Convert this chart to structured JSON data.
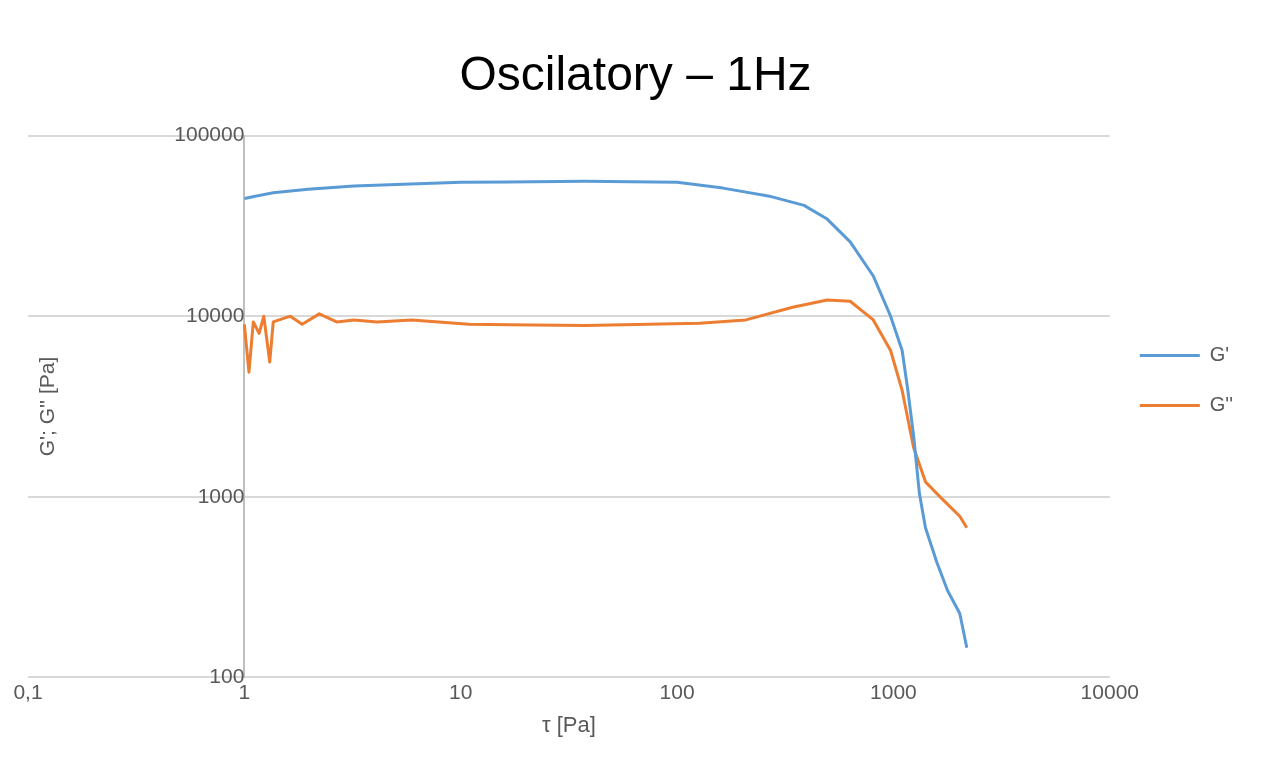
{
  "chart_data": {
    "type": "line",
    "title": "Oscilatory – 1Hz",
    "xlabel": "τ [Pa]",
    "ylabel": "G'; G'' [Pa]",
    "log": "xy",
    "grid": "y",
    "legend": "right",
    "marker": "none",
    "line_style": "solid",
    "xlim": [
      0.1,
      10000
    ],
    "xticks": [
      {
        "value": 0.1,
        "label": "0,1"
      },
      1,
      10,
      100,
      1000,
      10000
    ],
    "ylim": [
      100,
      100000
    ],
    "yticks": [
      100,
      1000,
      10000,
      100000
    ],
    "series": [
      {
        "name": "G'",
        "color": "#5b9bd5",
        "x": [
          1,
          1.36,
          1.97,
          3.21,
          10,
          37.5,
          100,
          163,
          267,
          386,
          494,
          631,
          807,
          970,
          1097,
          1166,
          1240,
          1318,
          1406,
          1585,
          1778,
          2026,
          2183
        ],
        "values": [
          44900,
          48300,
          50500,
          52600,
          55100,
          55800,
          55100,
          51200,
          46200,
          41100,
          34500,
          25800,
          16700,
          10000,
          6460,
          3880,
          2160,
          1045,
          674,
          436,
          303,
          226,
          146
        ]
      },
      {
        "name": "G''",
        "color": "#ed7d31",
        "x": [
          1,
          1.05,
          1.1,
          1.17,
          1.23,
          1.31,
          1.36,
          1.63,
          1.85,
          2.22,
          2.67,
          3.21,
          4.1,
          5.94,
          10.9,
          37.5,
          127,
          208,
          342,
          494,
          631,
          807,
          970,
          1097,
          1240,
          1406,
          1683,
          2026,
          2183
        ],
        "values": [
          9020,
          4900,
          9300,
          8030,
          10000,
          5570,
          9300,
          10000,
          9020,
          10300,
          9300,
          9540,
          9300,
          9540,
          9020,
          8890,
          9150,
          9540,
          11200,
          12300,
          12100,
          9540,
          6460,
          3880,
          1870,
          1210,
          970,
          780,
          674
        ]
      }
    ]
  }
}
